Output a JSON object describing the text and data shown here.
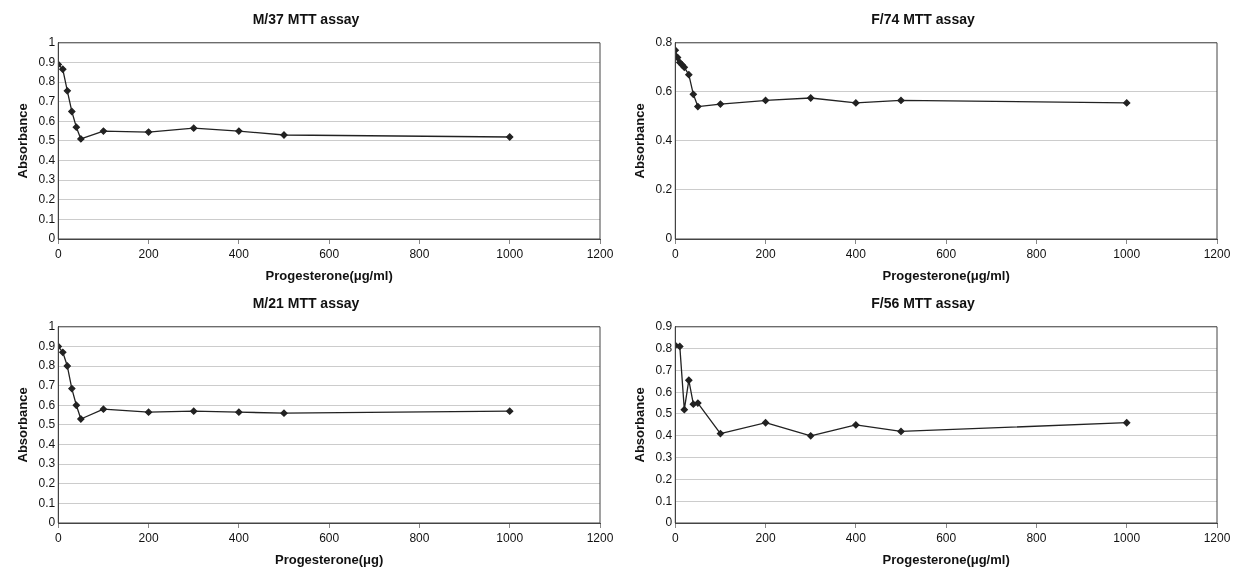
{
  "chart_data": [
    {
      "type": "line",
      "title": "M/37 MTT assay",
      "xlabel": "Progesterone(μg/ml)",
      "ylabel": "Absorbance",
      "x": [
        0,
        10,
        20,
        30,
        40,
        50,
        100,
        200,
        300,
        400,
        500,
        1000
      ],
      "series": [
        {
          "color": "#222222",
          "values": [
            0.89,
            0.865,
            0.755,
            0.65,
            0.57,
            0.51,
            0.55,
            0.545,
            0.565,
            0.55,
            0.53,
            0.52
          ]
        }
      ],
      "xlim": [
        0,
        1200
      ],
      "xticks": [
        0,
        200,
        400,
        600,
        800,
        1000,
        1200
      ],
      "ylim": [
        0,
        1
      ],
      "yticks": [
        0,
        0.1,
        0.2,
        0.3,
        0.4,
        0.5,
        0.6,
        0.7,
        0.8,
        0.9,
        1
      ],
      "grid": "y",
      "marker": "diamond",
      "line_style": "solid"
    },
    {
      "type": "line",
      "title": "F/74 MTT assay",
      "xlabel": "Progesterone(μg/ml)",
      "ylabel": "Absorbance",
      "x": [
        0,
        5,
        10,
        15,
        20,
        30,
        40,
        50,
        100,
        200,
        300,
        400,
        500,
        1000
      ],
      "series": [
        {
          "color": "#222222",
          "values": [
            0.77,
            0.74,
            0.72,
            0.71,
            0.7,
            0.67,
            0.59,
            0.54,
            0.55,
            0.565,
            0.575,
            0.555,
            0.565,
            0.555
          ]
        }
      ],
      "xlim": [
        0,
        1200
      ],
      "xticks": [
        0,
        200,
        400,
        600,
        800,
        1000,
        1200
      ],
      "ylim": [
        0,
        0.8
      ],
      "yticks": [
        0,
        0.2,
        0.4,
        0.6,
        0.8
      ],
      "grid": "y",
      "marker": "diamond",
      "line_style": "solid"
    },
    {
      "type": "line",
      "title": "M/21 MTT assay",
      "xlabel": "Progesterone(μg)",
      "ylabel": "Absorbance",
      "x": [
        0,
        10,
        20,
        30,
        40,
        50,
        100,
        200,
        300,
        400,
        500,
        1000
      ],
      "series": [
        {
          "color": "#222222",
          "values": [
            0.9,
            0.87,
            0.8,
            0.685,
            0.6,
            0.53,
            0.58,
            0.565,
            0.57,
            0.565,
            0.56,
            0.57
          ]
        }
      ],
      "xlim": [
        0,
        1200
      ],
      "xticks": [
        0,
        200,
        400,
        600,
        800,
        1000,
        1200
      ],
      "ylim": [
        0,
        1
      ],
      "yticks": [
        0,
        0.1,
        0.2,
        0.3,
        0.4,
        0.5,
        0.6,
        0.7,
        0.8,
        0.9,
        1
      ],
      "grid": "y",
      "marker": "diamond",
      "line_style": "solid"
    },
    {
      "type": "line",
      "title": "F/56 MTT assay",
      "xlabel": "Progesterone(μg/ml)",
      "ylabel": "Absorbance",
      "x": [
        0,
        10,
        20,
        30,
        40,
        50,
        100,
        200,
        300,
        400,
        500,
        1000
      ],
      "series": [
        {
          "color": "#222222",
          "values": [
            0.815,
            0.81,
            0.52,
            0.655,
            0.545,
            0.55,
            0.41,
            0.46,
            0.4,
            0.45,
            0.42,
            0.46
          ]
        }
      ],
      "xlim": [
        0,
        1200
      ],
      "xticks": [
        0,
        200,
        400,
        600,
        800,
        1000,
        1200
      ],
      "ylim": [
        0,
        0.9
      ],
      "yticks": [
        0,
        0.1,
        0.2,
        0.3,
        0.4,
        0.5,
        0.6,
        0.7,
        0.8,
        0.9
      ],
      "grid": "y",
      "marker": "diamond",
      "line_style": "solid"
    }
  ]
}
